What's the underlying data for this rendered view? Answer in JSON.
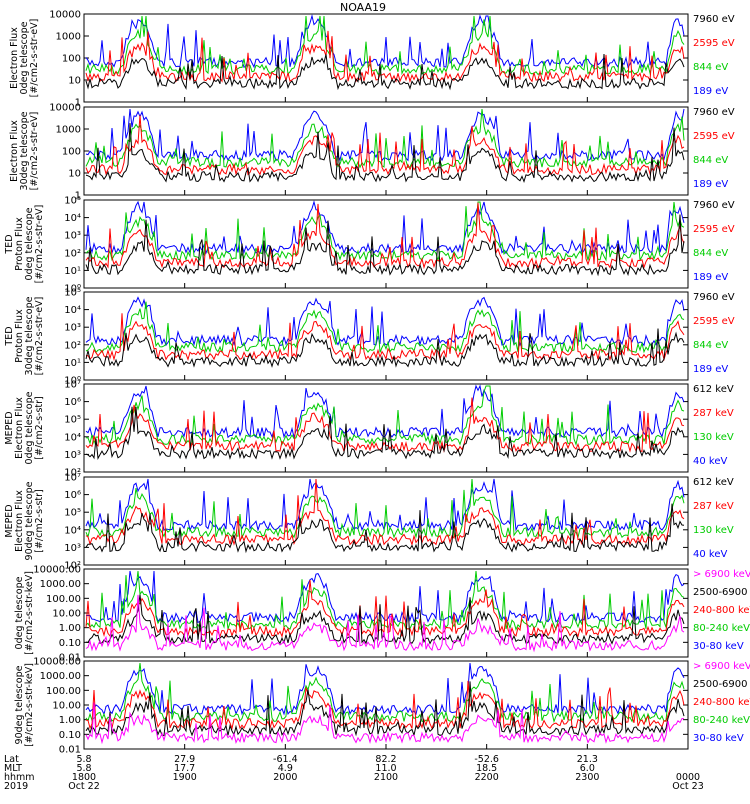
{
  "chart_data": {
    "type": "line",
    "title": "NOAA19",
    "panels": [
      {
        "ylabel": [
          "Electron Flux",
          "0deg telescope",
          "[#/cm2-s-str-eV]"
        ],
        "yscale": "log",
        "yticks": [
          "1",
          "10",
          "100",
          "1000",
          "10000"
        ],
        "legend": [
          {
            "label": "7960 eV",
            "color": "#000000"
          },
          {
            "label": "2595 eV",
            "color": "#ff0000"
          },
          {
            "label": "844 eV",
            "color": "#00cc00"
          },
          {
            "label": "189 eV",
            "color": "#0000ff"
          }
        ]
      },
      {
        "ylabel": [
          "Electron Flux",
          "30deg telescope",
          "[#/cm2-s-str-eV]"
        ],
        "yscale": "log",
        "yticks": [
          "1",
          "10",
          "100",
          "1000",
          "10000"
        ],
        "legend": [
          {
            "label": "7960 eV",
            "color": "#000000"
          },
          {
            "label": "2595 eV",
            "color": "#ff0000"
          },
          {
            "label": "844 eV",
            "color": "#00cc00"
          },
          {
            "label": "189 eV",
            "color": "#0000ff"
          }
        ]
      },
      {
        "ylabel": [
          "TED",
          "Proton Flux",
          "0deg telescope",
          "[#/cm2-s-str-eV]"
        ],
        "yscale": "log",
        "yticks": [
          "10⁰",
          "10¹",
          "10²",
          "10³",
          "10⁴",
          "10⁵"
        ],
        "legend": [
          {
            "label": "7960 eV",
            "color": "#000000"
          },
          {
            "label": "2595 eV",
            "color": "#ff0000"
          },
          {
            "label": "844 eV",
            "color": "#00cc00"
          },
          {
            "label": "189 eV",
            "color": "#0000ff"
          }
        ]
      },
      {
        "ylabel": [
          "TED",
          "Proton Flux",
          "30deg telescope",
          "[#/cm2-s-str-eV]"
        ],
        "yscale": "log",
        "yticks": [
          "10⁰",
          "10¹",
          "10²",
          "10³",
          "10⁴",
          "10⁵"
        ],
        "legend": [
          {
            "label": "7960 eV",
            "color": "#000000"
          },
          {
            "label": "2595 eV",
            "color": "#ff0000"
          },
          {
            "label": "844 eV",
            "color": "#00cc00"
          },
          {
            "label": "189 eV",
            "color": "#0000ff"
          }
        ]
      },
      {
        "ylabel": [
          "MEPED",
          "Electron Flux",
          "0deg telescope",
          "[#/cm2-s-str]"
        ],
        "yscale": "log",
        "yticks": [
          "10²",
          "10³",
          "10⁴",
          "10⁵",
          "10⁶",
          "10⁷"
        ],
        "legend": [
          {
            "label": "612 keV",
            "color": "#000000"
          },
          {
            "label": "287 keV",
            "color": "#ff0000"
          },
          {
            "label": "130 keV",
            "color": "#00cc00"
          },
          {
            "label": "40 keV",
            "color": "#0000ff"
          }
        ]
      },
      {
        "ylabel": [
          "MEPED",
          "Electron Flux",
          "90deg telescope",
          "[#/cm2-s-str]"
        ],
        "yscale": "log",
        "yticks": [
          "10²",
          "10³",
          "10⁴",
          "10⁵",
          "10⁶",
          "10⁷"
        ],
        "legend": [
          {
            "label": "612 keV",
            "color": "#000000"
          },
          {
            "label": "287 keV",
            "color": "#ff0000"
          },
          {
            "label": "130 keV",
            "color": "#00cc00"
          },
          {
            "label": "40 keV",
            "color": "#0000ff"
          }
        ]
      },
      {
        "ylabel": [
          "0deg telescope",
          "[#/cm2-s-str-keV]"
        ],
        "yscale": "log",
        "yticks": [
          "0.01",
          "0.10",
          "1.00",
          "10.00",
          "100.00",
          "1000.00",
          "10000.00"
        ],
        "legend": [
          {
            "label": "> 6900 keV",
            "color": "#ff00ff"
          },
          {
            "label": "2500-6900",
            "color": "#000000"
          },
          {
            "label": "240-800 keV",
            "color": "#ff0000"
          },
          {
            "label": "80-240 keV",
            "color": "#00cc00"
          },
          {
            "label": "30-80 keV",
            "color": "#0000ff"
          }
        ]
      },
      {
        "ylabel": [
          "90deg telescope",
          "[#/cm2-s-str-keV]"
        ],
        "yscale": "log",
        "yticks": [
          "0.01",
          "0.10",
          "1.00",
          "10.00",
          "100.00",
          "1000.00",
          "10000.00"
        ],
        "legend": [
          {
            "label": "> 6900 keV",
            "color": "#ff00ff"
          },
          {
            "label": "2500-6900",
            "color": "#000000"
          },
          {
            "label": "240-800 keV",
            "color": "#ff0000"
          },
          {
            "label": "80-240 keV",
            "color": "#00cc00"
          },
          {
            "label": "30-80 keV",
            "color": "#0000ff"
          }
        ]
      }
    ],
    "xaxis": {
      "row_labels": [
        "Lat",
        "MLT",
        "hhmm",
        "2019"
      ],
      "ticks": [
        {
          "lat": "5.8",
          "mlt": "5.8",
          "hhmm": "1800",
          "date": "Oct 22"
        },
        {
          "lat": "27.9",
          "mlt": "17.7",
          "hhmm": "1900",
          "date": ""
        },
        {
          "lat": "-61.4",
          "mlt": "4.9",
          "hhmm": "2000",
          "date": ""
        },
        {
          "lat": "82.2",
          "mlt": "11.0",
          "hhmm": "2100",
          "date": ""
        },
        {
          "lat": "-52.6",
          "mlt": "18.5",
          "hhmm": "2200",
          "date": ""
        },
        {
          "lat": "21.3",
          "mlt": "6.0",
          "hhmm": "2300",
          "date": ""
        },
        {
          "lat": "",
          "mlt": "",
          "hhmm": "0000",
          "date": "Oct 23"
        }
      ],
      "range_hours": [
        18,
        24
      ]
    },
    "passes_hours": [
      {
        "center": 18.55,
        "width": 0.18
      },
      {
        "center": 20.3,
        "width": 0.2
      },
      {
        "center": 21.95,
        "width": 0.2
      },
      {
        "center": 23.9,
        "width": 0.12
      }
    ]
  }
}
